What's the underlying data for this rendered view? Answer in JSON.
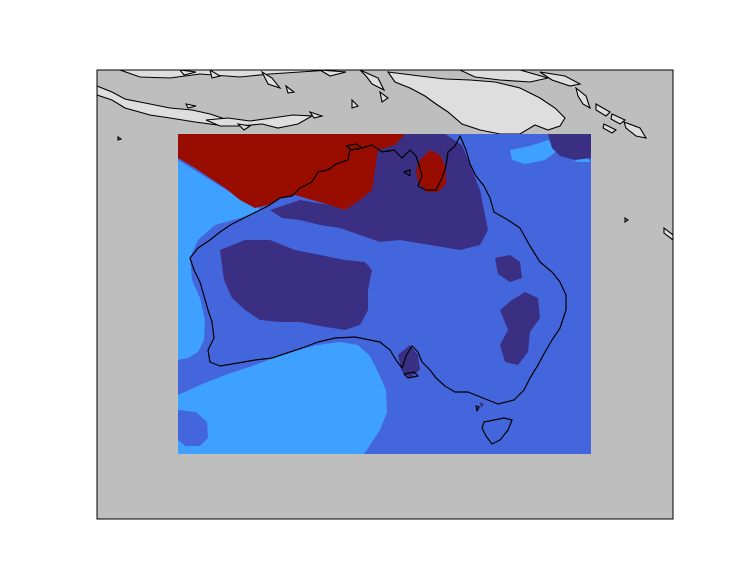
{
  "map": {
    "projection": "cylindrical",
    "extent": {
      "lon": [
        100,
        175
      ],
      "lat": [
        -56,
        0
      ]
    },
    "data_extent": {
      "lon": [
        110.5,
        164.5
      ],
      "lat": [
        -45,
        -8.5
      ]
    },
    "background_color": "#bebebe",
    "land_color": "#dedede",
    "coastline_color": "#000000",
    "frame": "box",
    "colors": {
      "dark_red": "#990c00",
      "dark_navy": "#3a2f82",
      "royal_blue": "#4466dd",
      "sky_blue": "#3ea0ff"
    },
    "grid": false,
    "colorbar": false
  }
}
